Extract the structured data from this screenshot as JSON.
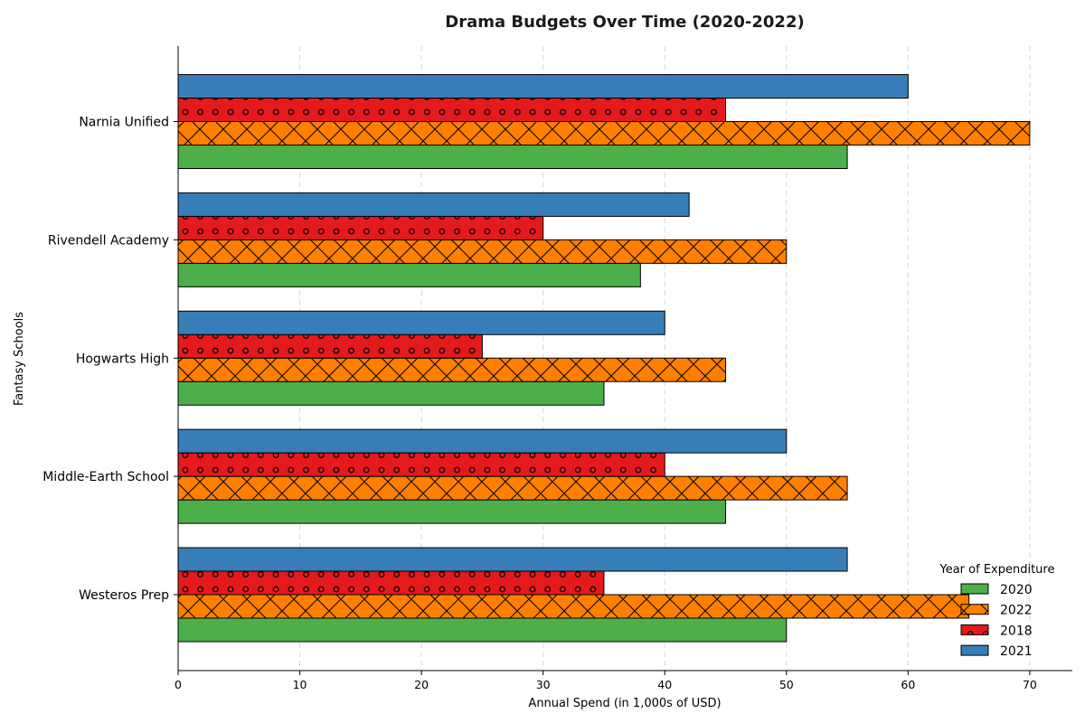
{
  "chart_data": {
    "type": "bar",
    "orientation": "horizontal",
    "title": "Drama Budgets Over Time (2020-2022)",
    "xlabel": "Annual Spend (in 1,000s of USD)",
    "ylabel": "Fantasy Schools",
    "xlim": [
      0,
      73.5
    ],
    "xticks": [
      0,
      10,
      20,
      30,
      40,
      50,
      60,
      70
    ],
    "grid": "vertical dashed",
    "categories": [
      "Westeros Prep",
      "Middle-Earth School",
      "Hogwarts High",
      "Rivendell Academy",
      "Narnia Unified"
    ],
    "series": [
      {
        "name": "2020",
        "color": "#4daf4a",
        "pattern": "none",
        "values": [
          50,
          45,
          35,
          38,
          55
        ]
      },
      {
        "name": "2022",
        "color": "#ff7f00",
        "pattern": "cross-hatch",
        "values": [
          65,
          55,
          45,
          50,
          70
        ]
      },
      {
        "name": "2018",
        "color": "#e41a1c",
        "pattern": "circles",
        "values": [
          35,
          40,
          25,
          30,
          45
        ]
      },
      {
        "name": "2021",
        "color": "#377eb8",
        "pattern": "none",
        "values": [
          55,
          50,
          40,
          42,
          60
        ]
      }
    ],
    "legend": {
      "title": "Year of Expenditure",
      "placement": "bottom-right"
    }
  },
  "colors": {
    "xlabel": "#800080",
    "grid": "#d9d9d9"
  }
}
